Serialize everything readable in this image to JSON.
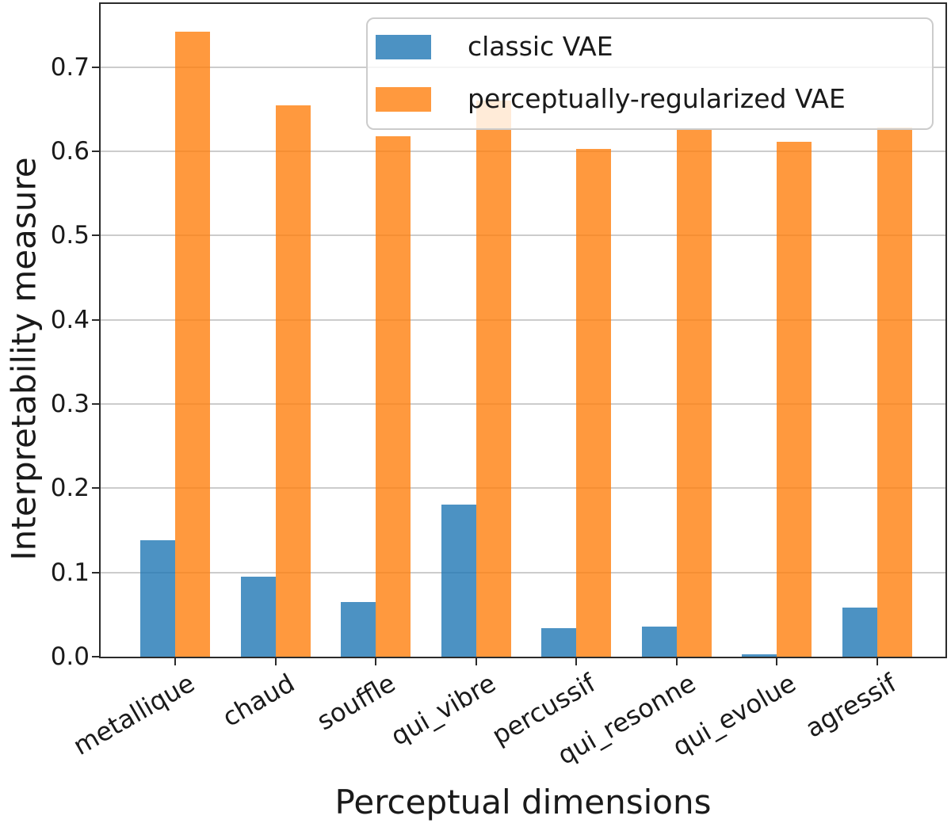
{
  "chart_data": {
    "type": "bar",
    "title": "",
    "xlabel": "Perceptual dimensions",
    "ylabel": "Interpretability measure",
    "categories": [
      "metallique",
      "chaud",
      "souffle",
      "qui_vibre",
      "percussif",
      "qui_resonne",
      "qui_evolue",
      "agressif"
    ],
    "series": [
      {
        "name": "classic VAE",
        "color": "#1f77b4",
        "alpha": 0.8,
        "values": [
          0.138,
          0.095,
          0.065,
          0.181,
          0.034,
          0.036,
          0.003,
          0.058
        ]
      },
      {
        "name": "perceptually-regularized VAE",
        "color": "#ff7f0e",
        "alpha": 0.8,
        "values": [
          0.742,
          0.655,
          0.618,
          0.66,
          0.603,
          0.625,
          0.611,
          0.628
        ]
      }
    ],
    "ylim": [
      0,
      0.775
    ],
    "yticks": [
      0.0,
      0.1,
      0.2,
      0.3,
      0.4,
      0.5,
      0.6,
      0.7
    ],
    "ytick_labels": [
      "0.0",
      "0.1",
      "0.2",
      "0.3",
      "0.4",
      "0.5",
      "0.6",
      "0.7"
    ],
    "grid": "horizontal-only",
    "grid_color": "#cccccc",
    "legend_position": "upper-right",
    "xtick_rotation_deg": 30,
    "axis_color": "#2b2b2b"
  }
}
